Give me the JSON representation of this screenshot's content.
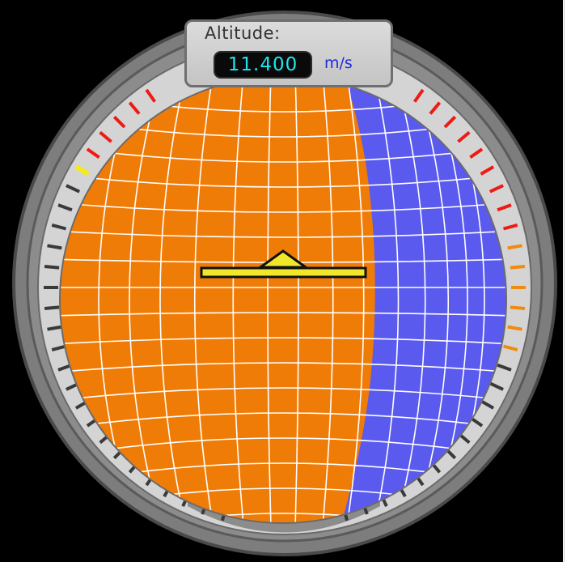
{
  "readout": {
    "label": "Altitude:",
    "value": "11.400",
    "unit": "m/s"
  },
  "colors": {
    "sphere_left": "#f07c08",
    "sphere_right": "#5a5bee",
    "grid_lines": "#ffffff",
    "horizon_marker": "#f0e62a",
    "tick_dark": "#3a3a3a",
    "tick_red": "#ee1a14",
    "tick_orange": "#f08a10",
    "tick_yellow": "#f2ec1c",
    "value_text": "#1ee6ee",
    "unit_text": "#1d2bd9"
  }
}
